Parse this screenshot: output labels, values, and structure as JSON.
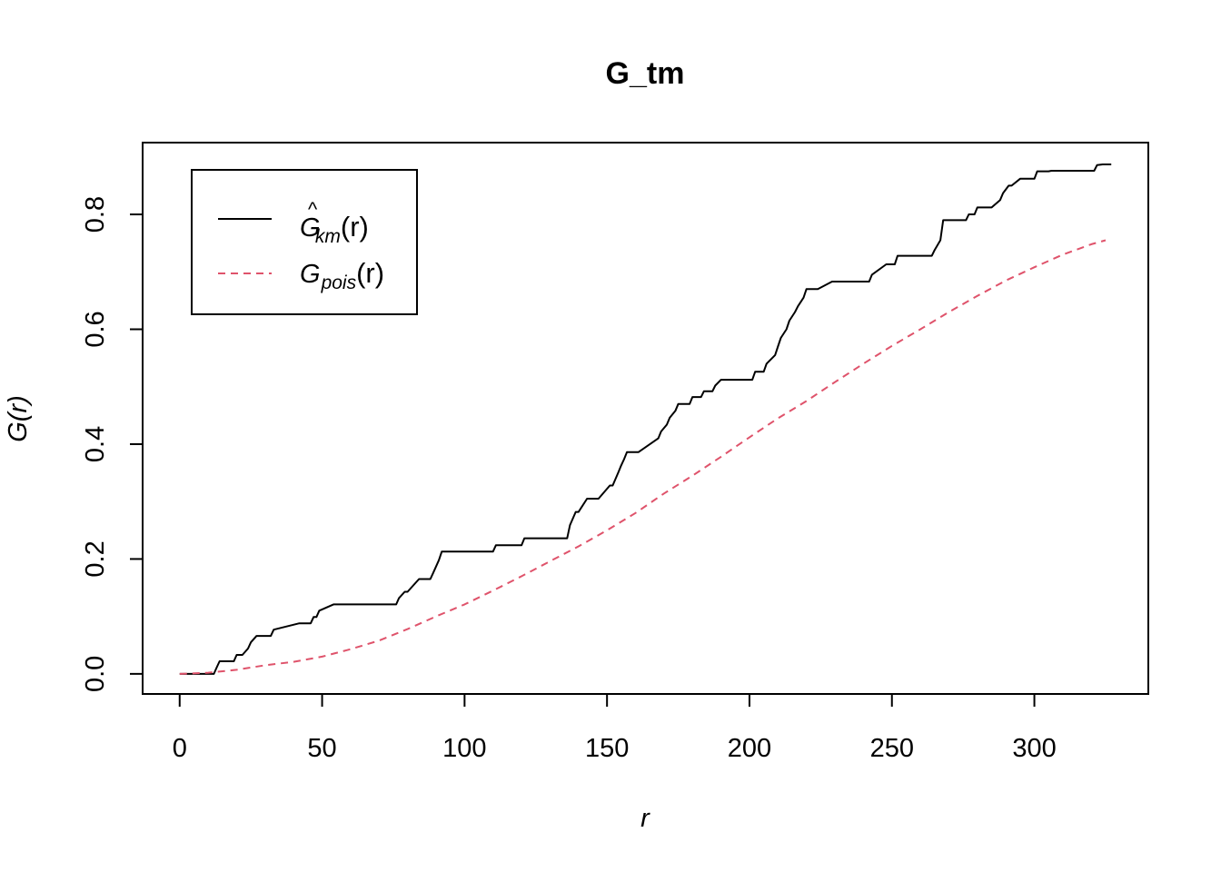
{
  "chart_data": {
    "type": "line",
    "title": "G_tm",
    "xlabel": "r",
    "ylabel": "G(r)",
    "xlim": [
      -13,
      340
    ],
    "ylim": [
      -0.035,
      0.925
    ],
    "xticks": [
      0,
      50,
      100,
      150,
      200,
      250,
      300
    ],
    "xtick_labels": [
      "0",
      "50",
      "100",
      "150",
      "200",
      "250",
      "300"
    ],
    "yticks": [
      0.0,
      0.2,
      0.4,
      0.6,
      0.8
    ],
    "ytick_labels": [
      "0.0",
      "0.2",
      "0.4",
      "0.6",
      "0.8"
    ],
    "grid": false,
    "legend_position": "top-left",
    "series": [
      {
        "name": "Ĝkm(r)",
        "legend_main": "G",
        "legend_hat": "^",
        "legend_sub": "km",
        "legend_tail": "(r)",
        "color": "#000000",
        "dash": "solid",
        "x": [
          0,
          12,
          13,
          14,
          19,
          20,
          22,
          24,
          25,
          27,
          32,
          33,
          42,
          43,
          46,
          47,
          48,
          49,
          54,
          55,
          56,
          76,
          77,
          79,
          80,
          84,
          86,
          88,
          89,
          91,
          92,
          110,
          111,
          118,
          120,
          121,
          136,
          137,
          139,
          140,
          143,
          144,
          146,
          147,
          151,
          152,
          154,
          155,
          156,
          157,
          158,
          160,
          161,
          168,
          169,
          171,
          172,
          174,
          175,
          176,
          179,
          180,
          183,
          184,
          187,
          188,
          190,
          191,
          201,
          202,
          205,
          206,
          209,
          210,
          211,
          213,
          214,
          216,
          217,
          219,
          220,
          221,
          222,
          223,
          224,
          229,
          230,
          242,
          243,
          248,
          249,
          251,
          252,
          264,
          265,
          267,
          268,
          270,
          271,
          276,
          277,
          279,
          280,
          284,
          285,
          288,
          289,
          291,
          292,
          295,
          296,
          300,
          301,
          305,
          306,
          321,
          322,
          324,
          325,
          327
        ],
        "y": [
          0.0,
          0.0,
          0.011,
          0.022,
          0.022,
          0.033,
          0.033,
          0.044,
          0.055,
          0.066,
          0.066,
          0.077,
          0.088,
          0.088,
          0.088,
          0.099,
          0.099,
          0.11,
          0.121,
          0.121,
          0.121,
          0.121,
          0.132,
          0.143,
          0.143,
          0.165,
          0.165,
          0.165,
          0.176,
          0.198,
          0.213,
          0.213,
          0.224,
          0.224,
          0.224,
          0.236,
          0.236,
          0.259,
          0.282,
          0.282,
          0.305,
          0.305,
          0.305,
          0.305,
          0.328,
          0.328,
          0.351,
          0.363,
          0.374,
          0.386,
          0.386,
          0.386,
          0.386,
          0.41,
          0.422,
          0.434,
          0.446,
          0.458,
          0.47,
          0.47,
          0.47,
          0.482,
          0.482,
          0.492,
          0.492,
          0.502,
          0.512,
          0.512,
          0.512,
          0.526,
          0.526,
          0.54,
          0.555,
          0.57,
          0.585,
          0.6,
          0.615,
          0.63,
          0.64,
          0.655,
          0.67,
          0.67,
          0.67,
          0.67,
          0.67,
          0.683,
          0.683,
          0.683,
          0.695,
          0.713,
          0.713,
          0.713,
          0.728,
          0.728,
          0.738,
          0.755,
          0.79,
          0.79,
          0.79,
          0.79,
          0.8,
          0.8,
          0.812,
          0.812,
          0.812,
          0.825,
          0.837,
          0.85,
          0.85,
          0.862,
          0.862,
          0.862,
          0.875,
          0.875,
          0.876,
          0.876,
          0.886,
          0.887,
          0.887,
          0.887
        ]
      },
      {
        "name": "Gpois(r)",
        "legend_main": "G",
        "legend_sub": "pois",
        "legend_tail": "(r)",
        "color": "#DF536B",
        "dash": "dashed",
        "x": [
          0,
          10,
          20,
          30,
          40,
          50,
          60,
          70,
          80,
          90,
          100,
          110,
          120,
          130,
          140,
          150,
          160,
          170,
          180,
          190,
          200,
          210,
          220,
          230,
          240,
          250,
          260,
          270,
          280,
          290,
          300,
          310,
          320,
          325
        ],
        "y": [
          0.0,
          0.002,
          0.007,
          0.015,
          0.021,
          0.03,
          0.043,
          0.058,
          0.078,
          0.1,
          0.121,
          0.145,
          0.17,
          0.196,
          0.222,
          0.25,
          0.28,
          0.314,
          0.345,
          0.378,
          0.412,
          0.445,
          0.475,
          0.508,
          0.54,
          0.571,
          0.6,
          0.63,
          0.658,
          0.685,
          0.708,
          0.73,
          0.748,
          0.755
        ]
      }
    ]
  }
}
